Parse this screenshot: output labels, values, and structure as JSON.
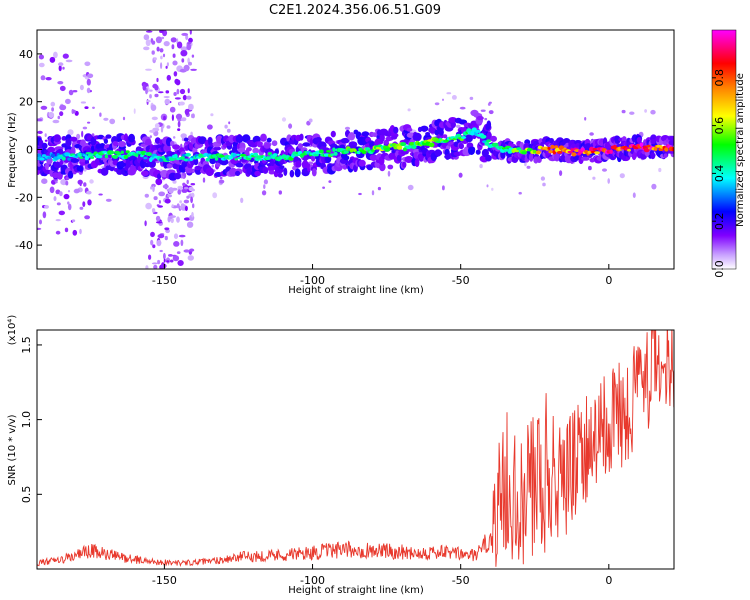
{
  "title": "C2E1.2024.356.06.51.G09",
  "chart_data": [
    {
      "type": "heatmap",
      "xlabel": "Height of straight line (km)",
      "ylabel": "Frequency (Hz)",
      "xlim": [
        -193,
        22
      ],
      "ylim": [
        -50,
        50
      ],
      "x_ticks": [
        -150,
        -100,
        -50,
        0
      ],
      "y_ticks": [
        -40,
        -20,
        0,
        20,
        40
      ],
      "colorbar": {
        "label": "Normalized spectral amplitude",
        "range": [
          0.0,
          1.0
        ],
        "ticks": [
          0.0,
          0.2,
          0.4,
          0.6,
          0.8
        ],
        "colors": [
          "#ffffff",
          "#8000ff",
          "#0000ff",
          "#00ffff",
          "#00ff00",
          "#ffff00",
          "#ff8000",
          "#ff0000",
          "#ff00ff"
        ]
      },
      "ridge": {
        "x": [
          -193,
          -180,
          -170,
          -160,
          -150,
          -140,
          -130,
          -120,
          -110,
          -100,
          -90,
          -80,
          -70,
          -60,
          -50,
          -45,
          -40,
          -35,
          -30,
          -20,
          -10,
          0,
          10,
          22
        ],
        "y": [
          -3,
          -3,
          -2,
          -2,
          -4,
          -3,
          -3,
          -3,
          -3,
          -2,
          -1,
          0,
          1,
          3,
          5,
          8,
          2,
          0,
          -1,
          0,
          -1,
          0,
          1,
          1
        ],
        "amplitude": [
          0.35,
          0.4,
          0.45,
          0.45,
          0.4,
          0.4,
          0.45,
          0.45,
          0.45,
          0.45,
          0.5,
          0.55,
          0.55,
          0.55,
          0.5,
          0.45,
          0.45,
          0.5,
          0.55,
          0.75,
          0.85,
          0.9,
          0.9,
          0.9
        ]
      },
      "scatter_bands": [
        {
          "x_range": [
            -157,
            -140
          ],
          "y_range": [
            -50,
            50
          ]
        },
        {
          "x_range": [
            -193,
            -175
          ],
          "y_range": [
            -35,
            40
          ]
        }
      ]
    },
    {
      "type": "line",
      "xlabel": "Height of straight line (km)",
      "ylabel": "SNR (10 * v/v)",
      "y_multiplier": "(x10⁴)",
      "xlim": [
        -193,
        22
      ],
      "ylim": [
        0,
        1.6
      ],
      "x_ticks": [
        -150,
        -100,
        -50,
        0
      ],
      "y_ticks": [
        0.5,
        1.0,
        1.5
      ],
      "color": "#e8382c",
      "envelope": {
        "x": [
          -193,
          -185,
          -175,
          -165,
          -155,
          -145,
          -135,
          -125,
          -115,
          -105,
          -95,
          -85,
          -75,
          -65,
          -55,
          -45,
          -40,
          -35,
          -30,
          -25,
          -20,
          -15,
          -10,
          -5,
          0,
          5,
          10,
          15,
          22
        ],
        "y": [
          0.04,
          0.06,
          0.12,
          0.08,
          0.05,
          0.04,
          0.05,
          0.08,
          0.09,
          0.1,
          0.12,
          0.13,
          0.12,
          0.11,
          0.11,
          0.09,
          0.2,
          0.6,
          0.5,
          0.55,
          0.65,
          0.55,
          0.8,
          0.85,
          0.95,
          1.05,
          1.2,
          1.35,
          1.4
        ]
      },
      "noise": {
        "x": [
          -193,
          -40,
          -38,
          -20,
          -19,
          22
        ],
        "y": [
          0.04,
          0.04,
          0.3,
          0.35,
          0.25,
          0.22
        ]
      }
    }
  ]
}
